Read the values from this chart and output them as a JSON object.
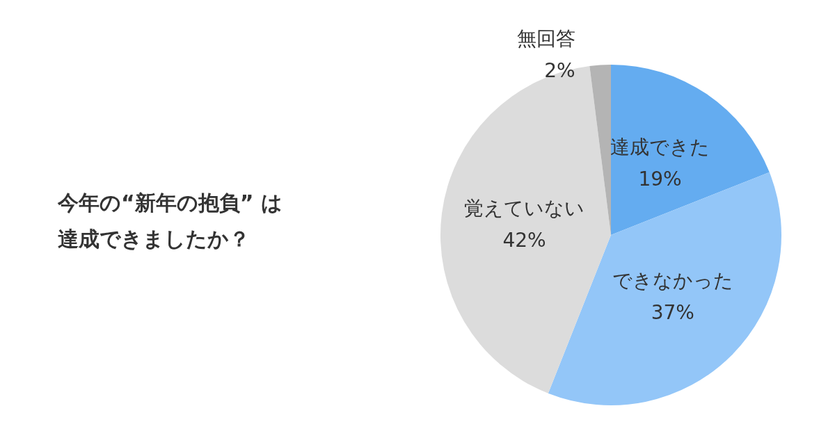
{
  "chart_data": {
    "type": "pie",
    "title": "今年の“新年の抱負” は達成できましたか？",
    "categories": [
      "達成できた",
      "できなかった",
      "覚えていない",
      "無回答"
    ],
    "values": [
      19,
      37,
      42,
      2
    ],
    "value_labels": [
      "19%",
      "37%",
      "42%",
      "2%"
    ],
    "colors": [
      "#64acf0",
      "#93c6f8",
      "#dcdcdc",
      "#b4b4b4"
    ],
    "legend": false
  }
}
